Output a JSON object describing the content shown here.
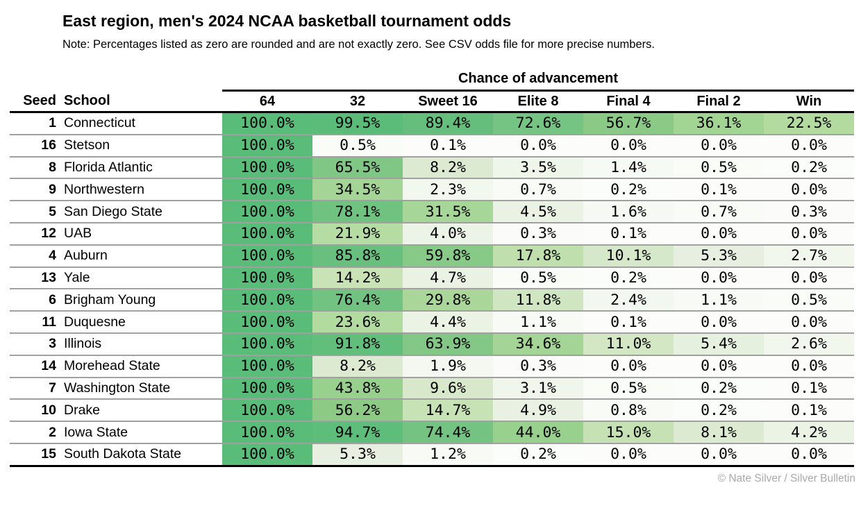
{
  "title": "East region, men's 2024 NCAA basketball tournament odds",
  "note": "Note: Percentages listed as zero are rounded and are not exactly zero. See CSV odds file for more precise numbers.",
  "table": {
    "group_header": "Chance of advancement",
    "seed_label": "Seed",
    "school_label": "School",
    "columns": [
      "64",
      "32",
      "Sweet 16",
      "Elite 8",
      "Final 4",
      "Final 2",
      "Win"
    ],
    "rows": [
      {
        "seed": "1",
        "school": "Connecticut",
        "values": [
          100.0,
          99.5,
          89.4,
          72.6,
          56.7,
          36.1,
          22.5
        ]
      },
      {
        "seed": "16",
        "school": "Stetson",
        "values": [
          100.0,
          0.5,
          0.1,
          0.0,
          0.0,
          0.0,
          0.0
        ]
      },
      {
        "seed": "8",
        "school": "Florida Atlantic",
        "values": [
          100.0,
          65.5,
          8.2,
          3.5,
          1.4,
          0.5,
          0.2
        ]
      },
      {
        "seed": "9",
        "school": "Northwestern",
        "values": [
          100.0,
          34.5,
          2.3,
          0.7,
          0.2,
          0.1,
          0.0
        ]
      },
      {
        "seed": "5",
        "school": "San Diego State",
        "values": [
          100.0,
          78.1,
          31.5,
          4.5,
          1.6,
          0.7,
          0.3
        ]
      },
      {
        "seed": "12",
        "school": "UAB",
        "values": [
          100.0,
          21.9,
          4.0,
          0.3,
          0.1,
          0.0,
          0.0
        ]
      },
      {
        "seed": "4",
        "school": "Auburn",
        "values": [
          100.0,
          85.8,
          59.8,
          17.8,
          10.1,
          5.3,
          2.7
        ]
      },
      {
        "seed": "13",
        "school": "Yale",
        "values": [
          100.0,
          14.2,
          4.7,
          0.5,
          0.2,
          0.0,
          0.0
        ]
      },
      {
        "seed": "6",
        "school": "Brigham Young",
        "values": [
          100.0,
          76.4,
          29.8,
          11.8,
          2.4,
          1.1,
          0.5
        ]
      },
      {
        "seed": "11",
        "school": "Duquesne",
        "values": [
          100.0,
          23.6,
          4.4,
          1.1,
          0.1,
          0.0,
          0.0
        ]
      },
      {
        "seed": "3",
        "school": "Illinois",
        "values": [
          100.0,
          91.8,
          63.9,
          34.6,
          11.0,
          5.4,
          2.6
        ]
      },
      {
        "seed": "14",
        "school": "Morehead State",
        "values": [
          100.0,
          8.2,
          1.9,
          0.3,
          0.0,
          0.0,
          0.0
        ]
      },
      {
        "seed": "7",
        "school": "Washington State",
        "values": [
          100.0,
          43.8,
          9.6,
          3.1,
          0.5,
          0.2,
          0.1
        ]
      },
      {
        "seed": "10",
        "school": "Drake",
        "values": [
          100.0,
          56.2,
          14.7,
          4.9,
          0.8,
          0.2,
          0.1
        ]
      },
      {
        "seed": "2",
        "school": "Iowa State",
        "values": [
          100.0,
          94.7,
          74.4,
          44.0,
          15.0,
          8.1,
          4.2
        ]
      },
      {
        "seed": "15",
        "school": "South Dakota State",
        "values": [
          100.0,
          5.3,
          1.2,
          0.2,
          0.0,
          0.0,
          0.0
        ]
      }
    ]
  },
  "footer": {
    "credit": "© Nate Silver / Silver Bulletin"
  },
  "colors": {
    "separator": "#a0a0a0",
    "rule": "#000000",
    "credit_text": "#a9a9a9",
    "scale": [
      {
        "v": 0,
        "color": "#fcfdfb"
      },
      {
        "v": 8,
        "color": "#dcead2"
      },
      {
        "v": 15,
        "color": "#c6e2b4"
      },
      {
        "v": 23,
        "color": "#b2db9f"
      },
      {
        "v": 44,
        "color": "#98d08e"
      },
      {
        "v": 57,
        "color": "#8bca86"
      },
      {
        "v": 74,
        "color": "#74c383"
      },
      {
        "v": 90,
        "color": "#64be7c"
      },
      {
        "v": 100,
        "color": "#5abc79"
      }
    ]
  },
  "chart_data": {
    "type": "table",
    "title": "East region, men's 2024 NCAA basketball tournament odds",
    "subtitle": "Note: Percentages listed as zero are rounded and are not exactly zero. See CSV odds file for more precise numbers.",
    "group_header": "Chance of advancement",
    "columns": [
      "Seed",
      "School",
      "64",
      "32",
      "Sweet 16",
      "Elite 8",
      "Final 4",
      "Final 2",
      "Win"
    ],
    "value_unit": "%",
    "color_encoding": "cell background shades from white (0%) to green (100%)",
    "rows": [
      [
        1,
        "Connecticut",
        100.0,
        99.5,
        89.4,
        72.6,
        56.7,
        36.1,
        22.5
      ],
      [
        16,
        "Stetson",
        100.0,
        0.5,
        0.1,
        0.0,
        0.0,
        0.0,
        0.0
      ],
      [
        8,
        "Florida Atlantic",
        100.0,
        65.5,
        8.2,
        3.5,
        1.4,
        0.5,
        0.2
      ],
      [
        9,
        "Northwestern",
        100.0,
        34.5,
        2.3,
        0.7,
        0.2,
        0.1,
        0.0
      ],
      [
        5,
        "San Diego State",
        100.0,
        78.1,
        31.5,
        4.5,
        1.6,
        0.7,
        0.3
      ],
      [
        12,
        "UAB",
        100.0,
        21.9,
        4.0,
        0.3,
        0.1,
        0.0,
        0.0
      ],
      [
        4,
        "Auburn",
        100.0,
        85.8,
        59.8,
        17.8,
        10.1,
        5.3,
        2.7
      ],
      [
        13,
        "Yale",
        100.0,
        14.2,
        4.7,
        0.5,
        0.2,
        0.0,
        0.0
      ],
      [
        6,
        "Brigham Young",
        100.0,
        76.4,
        29.8,
        11.8,
        2.4,
        1.1,
        0.5
      ],
      [
        11,
        "Duquesne",
        100.0,
        23.6,
        4.4,
        1.1,
        0.1,
        0.0,
        0.0
      ],
      [
        3,
        "Illinois",
        100.0,
        91.8,
        63.9,
        34.6,
        11.0,
        5.4,
        2.6
      ],
      [
        14,
        "Morehead State",
        100.0,
        8.2,
        1.9,
        0.3,
        0.0,
        0.0,
        0.0
      ],
      [
        7,
        "Washington State",
        100.0,
        43.8,
        9.6,
        3.1,
        0.5,
        0.2,
        0.1
      ],
      [
        10,
        "Drake",
        100.0,
        56.2,
        14.7,
        4.9,
        0.8,
        0.2,
        0.1
      ],
      [
        2,
        "Iowa State",
        100.0,
        94.7,
        74.4,
        44.0,
        15.0,
        8.1,
        4.2
      ],
      [
        15,
        "South Dakota State",
        100.0,
        5.3,
        1.2,
        0.2,
        0.0,
        0.0,
        0.0
      ]
    ],
    "footer": "© Nate Silver / Silver Bulletin"
  }
}
